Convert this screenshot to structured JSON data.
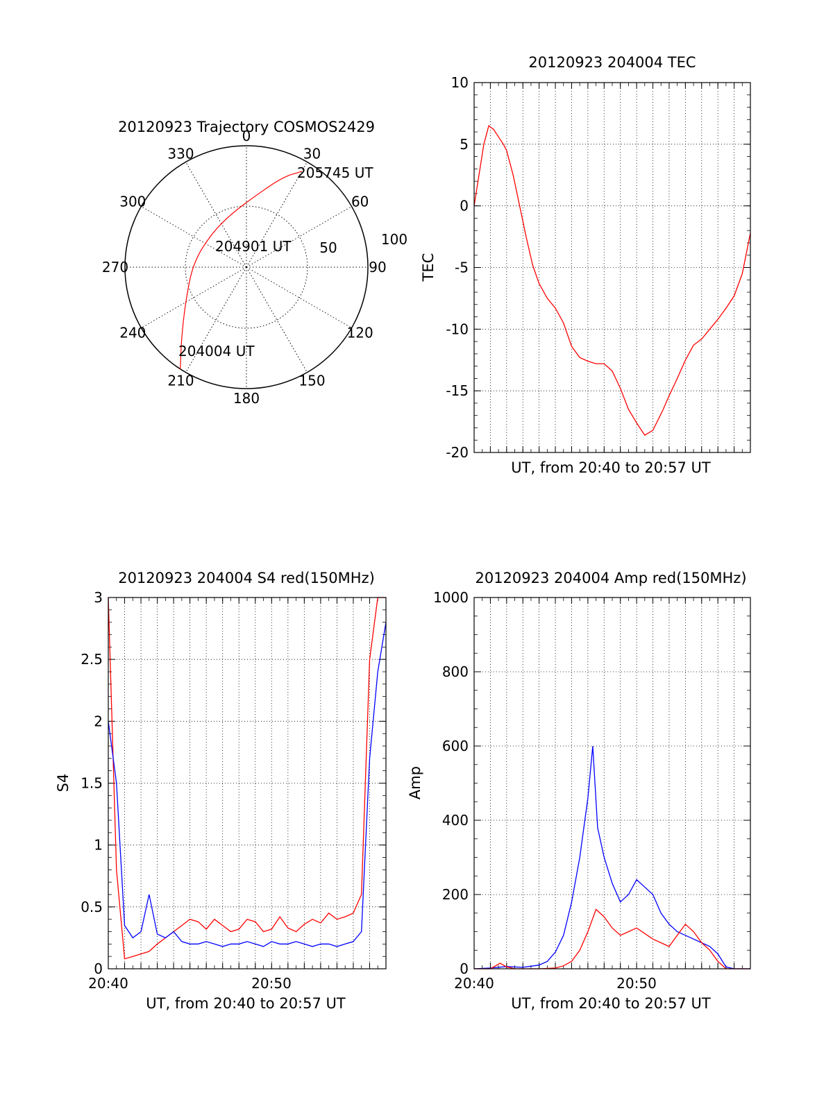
{
  "colors": {
    "red": "#ff0000",
    "blue": "#0000ff",
    "axes": "#000000",
    "grid": "#000000"
  },
  "charts": [
    {
      "id": "polar",
      "title": "20120923 Trajectory COSMOS2429",
      "angle_labels": [
        "0",
        "30",
        "60",
        "90",
        "120",
        "150",
        "180",
        "210",
        "240",
        "270",
        "300",
        "330"
      ],
      "radius_labels": [
        "50",
        "100"
      ],
      "annotations": [
        "205745 UT",
        "204901 UT",
        "204004 UT"
      ]
    },
    {
      "id": "tec",
      "title": "20120923 204004 TEC",
      "ylabel": "TEC",
      "xlabel": "UT, from 20:40 to 20:57 UT",
      "yticks": [
        "10",
        "5",
        "0",
        "-5",
        "-10",
        "-15",
        "-20"
      ],
      "xticks": []
    },
    {
      "id": "s4",
      "title": "20120923 204004 S4 red(150MHz)",
      "ylabel": "S4",
      "xlabel": "UT, from 20:40 to 20:57 UT",
      "yticks": [
        "3",
        "2.5",
        "2",
        "1.5",
        "1",
        "0.5",
        "0"
      ],
      "xticks": [
        "20:40",
        "20:50"
      ]
    },
    {
      "id": "amp",
      "title": "20120923 204004 Amp red(150MHz)",
      "ylabel": "Amp",
      "xlabel": "UT, from 20:40 to 20:57 UT",
      "yticks": [
        "1000",
        "800",
        "600",
        "400",
        "200",
        "0"
      ],
      "xticks": [
        "20:40",
        "20:50"
      ]
    }
  ],
  "chart_data": [
    {
      "type": "scatter",
      "coord": "polar",
      "title": "20120923 Trajectory COSMOS2429",
      "series": [
        {
          "color": "#ff0000",
          "points": [
            {
              "az": 213,
              "zen": 100
            },
            {
              "az": 222,
              "zen": 80
            },
            {
              "az": 240,
              "zen": 58
            },
            {
              "az": 275,
              "zen": 44
            },
            {
              "az": 315,
              "zen": 40
            },
            {
              "az": 345,
              "zen": 46
            },
            {
              "az": 8,
              "zen": 60
            },
            {
              "az": 22,
              "zen": 80
            },
            {
              "az": 30,
              "zen": 91
            }
          ]
        }
      ],
      "rlim": [
        0,
        100
      ]
    },
    {
      "type": "line",
      "title": "20120923 204004 TEC",
      "xlabel": "UT, from 20:40 to 20:57 UT",
      "ylabel": "TEC",
      "xlim": [
        0,
        17
      ],
      "ylim": [
        -20,
        10
      ],
      "grid": true,
      "series": [
        {
          "color": "#ff0000",
          "x": [
            0,
            0.3,
            0.6,
            0.9,
            1.2,
            1.5,
            1.8,
            2.0,
            2.4,
            2.8,
            3.2,
            3.6,
            4.0,
            4.5,
            5.0,
            5.5,
            6.0,
            6.5,
            7.0,
            7.5,
            8.0,
            8.5,
            9.0,
            9.5,
            10.0,
            10.5,
            11.0,
            11.3,
            11.6,
            12.0,
            12.5,
            13.0,
            13.5,
            14.0,
            14.5,
            15.0,
            15.5,
            16.0,
            16.5,
            17.0
          ],
          "y": [
            0,
            2.5,
            5.0,
            6.5,
            6.2,
            5.6,
            5.0,
            4.5,
            2.5,
            0.0,
            -2.5,
            -4.8,
            -6.3,
            -7.5,
            -8.3,
            -9.5,
            -11.4,
            -12.3,
            -12.6,
            -12.8,
            -12.8,
            -13.4,
            -14.8,
            -16.5,
            -17.6,
            -18.6,
            -18.2,
            -17.4,
            -16.6,
            -15.4,
            -14.0,
            -12.5,
            -11.3,
            -10.8,
            -10.0,
            -9.2,
            -8.3,
            -7.3,
            -5.5,
            -2.2
          ]
        }
      ]
    },
    {
      "type": "line",
      "title": "20120923 204004 S4 red(150MHz)",
      "xlabel": "UT, from 20:40 to 20:57 UT",
      "ylabel": "S4",
      "xlim": [
        0,
        17
      ],
      "ylim": [
        0,
        3
      ],
      "grid": true,
      "series": [
        {
          "color": "#ff0000",
          "x": [
            0,
            0.5,
            1.0,
            1.5,
            2.0,
            2.5,
            3.0,
            3.5,
            4.0,
            4.5,
            5.0,
            5.5,
            6.0,
            6.5,
            7.0,
            7.5,
            8.0,
            8.5,
            9.0,
            9.5,
            10.0,
            10.5,
            11.0,
            11.5,
            12.0,
            12.5,
            13.0,
            13.5,
            14.0,
            14.5,
            15.0,
            15.5,
            16.0,
            16.5,
            17.0
          ],
          "y": [
            3.0,
            0.8,
            0.08,
            0.1,
            0.12,
            0.14,
            0.2,
            0.25,
            0.3,
            0.35,
            0.4,
            0.38,
            0.32,
            0.4,
            0.35,
            0.3,
            0.32,
            0.4,
            0.38,
            0.3,
            0.32,
            0.42,
            0.33,
            0.3,
            0.36,
            0.4,
            0.37,
            0.45,
            0.4,
            0.42,
            0.45,
            0.6,
            2.5,
            3.0,
            3.0
          ]
        },
        {
          "color": "#0000ff",
          "x": [
            0,
            0.5,
            1.0,
            1.5,
            2.0,
            2.5,
            3.0,
            3.5,
            4.0,
            4.5,
            5.0,
            5.5,
            6.0,
            6.5,
            7.0,
            7.5,
            8.0,
            8.5,
            9.0,
            9.5,
            10.0,
            10.5,
            11.0,
            11.5,
            12.0,
            12.5,
            13.0,
            13.5,
            14.0,
            14.5,
            15.0,
            15.5,
            16.0,
            16.5,
            17.0
          ],
          "y": [
            2.0,
            1.5,
            0.35,
            0.25,
            0.3,
            0.6,
            0.28,
            0.25,
            0.3,
            0.22,
            0.2,
            0.2,
            0.22,
            0.2,
            0.18,
            0.2,
            0.2,
            0.22,
            0.2,
            0.18,
            0.22,
            0.2,
            0.2,
            0.22,
            0.2,
            0.18,
            0.2,
            0.2,
            0.18,
            0.2,
            0.22,
            0.3,
            1.7,
            2.4,
            2.8
          ]
        }
      ]
    },
    {
      "type": "line",
      "title": "20120923 204004 Amp red(150MHz)",
      "xlabel": "UT, from 20:40 to 20:57 UT",
      "ylabel": "Amp",
      "xlim": [
        0,
        17
      ],
      "ylim": [
        0,
        1000
      ],
      "grid": true,
      "series": [
        {
          "color": "#0000ff",
          "x": [
            0,
            1.0,
            2.0,
            3.0,
            4.0,
            4.5,
            5.0,
            5.5,
            6.0,
            6.5,
            7.0,
            7.3,
            7.6,
            8.0,
            8.5,
            9.0,
            9.5,
            10.0,
            10.5,
            11.0,
            11.5,
            12.0,
            12.5,
            13.0,
            13.5,
            14.0,
            14.5,
            15.0,
            15.5,
            16.0,
            17.0
          ],
          "y": [
            0,
            2,
            6,
            4,
            10,
            20,
            45,
            90,
            180,
            300,
            460,
            600,
            380,
            300,
            230,
            180,
            200,
            240,
            220,
            200,
            150,
            120,
            100,
            90,
            80,
            70,
            60,
            40,
            5,
            0,
            0
          ]
        },
        {
          "color": "#ff0000",
          "x": [
            0,
            1.0,
            1.6,
            2.0,
            2.5,
            3.0,
            4.0,
            5.0,
            5.5,
            6.0,
            6.5,
            7.0,
            7.5,
            8.0,
            8.5,
            9.0,
            9.5,
            10.0,
            10.5,
            11.0,
            11.5,
            12.0,
            12.5,
            13.0,
            13.5,
            14.0,
            14.5,
            15.0,
            15.5,
            16.0,
            17.0
          ],
          "y": [
            0,
            0,
            15,
            5,
            0,
            0,
            0,
            2,
            8,
            20,
            50,
            100,
            160,
            140,
            110,
            90,
            100,
            110,
            95,
            80,
            70,
            60,
            90,
            120,
            100,
            70,
            50,
            20,
            0,
            0,
            0
          ]
        }
      ]
    }
  ]
}
